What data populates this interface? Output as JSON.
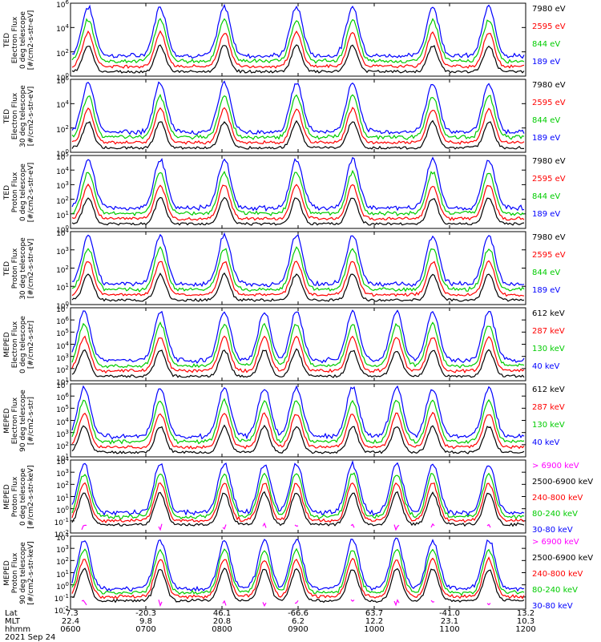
{
  "chart_data": {
    "type": "line",
    "date": "2021 Sep 24",
    "x_row_labels": [
      "Lat",
      "MLT",
      "hhmm"
    ],
    "x_ticks": [
      {
        "lat": "-7.3",
        "mlt": "22.4",
        "hhmm": "0600"
      },
      {
        "lat": "-20.3",
        "mlt": "9.8",
        "hhmm": "0700"
      },
      {
        "lat": "46.1",
        "mlt": "20.8",
        "hhmm": "0800"
      },
      {
        "lat": "-66.6",
        "mlt": "6.2",
        "hhmm": "0900"
      },
      {
        "lat": "63.7",
        "mlt": "12.2",
        "hhmm": "1000"
      },
      {
        "lat": "-41.0",
        "mlt": "23.1",
        "hhmm": "1100"
      },
      {
        "lat": "13.2",
        "mlt": "10.3",
        "hhmm": "1200"
      }
    ],
    "panels": [
      {
        "ylabel": [
          "TED",
          "Electron Flux",
          "0 deg telescope",
          "[#/cm2-s-str-eV]"
        ],
        "yticks": [
          "10^6",
          "10^4",
          "10^2",
          "10^0"
        ],
        "ylog_range": [
          0,
          6
        ],
        "series": [
          {
            "name": "7980 eV",
            "color": "#000000"
          },
          {
            "name": "2595 eV",
            "color": "#ff0000"
          },
          {
            "name": "844 eV",
            "color": "#00cc00"
          },
          {
            "name": "189 eV",
            "color": "#0000ff"
          }
        ]
      },
      {
        "ylabel": [
          "TED",
          "Electron Flux",
          "30 deg telescope",
          "[#/cm2-s-str-eV]"
        ],
        "yticks": [
          "10^6",
          "10^4",
          "10^2",
          "10^0"
        ],
        "ylog_range": [
          0,
          6
        ],
        "series": [
          {
            "name": "7980 eV",
            "color": "#000000"
          },
          {
            "name": "2595 eV",
            "color": "#ff0000"
          },
          {
            "name": "844 eV",
            "color": "#00cc00"
          },
          {
            "name": "189 eV",
            "color": "#0000ff"
          }
        ]
      },
      {
        "ylabel": [
          "TED",
          "Proton Flux",
          "0 deg telescope",
          "[#/cm2-s-str-eV]"
        ],
        "yticks": [
          "10^5",
          "10^4",
          "10^3",
          "10^2",
          "10^1",
          "10^0"
        ],
        "ylog_range": [
          0,
          5
        ],
        "series": [
          {
            "name": "7980 eV",
            "color": "#000000"
          },
          {
            "name": "2595 eV",
            "color": "#ff0000"
          },
          {
            "name": "844 eV",
            "color": "#00cc00"
          },
          {
            "name": "189 eV",
            "color": "#0000ff"
          }
        ]
      },
      {
        "ylabel": [
          "TED",
          "Proton Flux",
          "30 deg telescope",
          "[#/cm2-s-str-eV]"
        ],
        "yticks": [
          "10^4",
          "10^3",
          "10^2",
          "10^1",
          "10^0"
        ],
        "ylog_range": [
          0,
          4
        ],
        "series": [
          {
            "name": "7980 eV",
            "color": "#000000"
          },
          {
            "name": "2595 eV",
            "color": "#ff0000"
          },
          {
            "name": "844 eV",
            "color": "#00cc00"
          },
          {
            "name": "189 eV",
            "color": "#0000ff"
          }
        ]
      },
      {
        "ylabel": [
          "MEPED",
          "Electron Flux",
          "0 deg telescope",
          "[#/cm2-s-str]"
        ],
        "yticks": [
          "10^7",
          "10^6",
          "10^5",
          "10^4",
          "10^3",
          "10^2",
          "10^1"
        ],
        "ylog_range": [
          1,
          7
        ],
        "series": [
          {
            "name": "612 keV",
            "color": "#000000"
          },
          {
            "name": "287 keV",
            "color": "#ff0000"
          },
          {
            "name": "130 keV",
            "color": "#00cc00"
          },
          {
            "name": "40 keV",
            "color": "#0000ff"
          }
        ]
      },
      {
        "ylabel": [
          "MEPED",
          "Electron Flux",
          "90 deg telescope",
          "[#/cm2-s-str]"
        ],
        "yticks": [
          "10^7",
          "10^6",
          "10^5",
          "10^4",
          "10^3",
          "10^2",
          "10^1"
        ],
        "ylog_range": [
          1,
          7
        ],
        "series": [
          {
            "name": "612 keV",
            "color": "#000000"
          },
          {
            "name": "287 keV",
            "color": "#ff0000"
          },
          {
            "name": "130 keV",
            "color": "#00cc00"
          },
          {
            "name": "40 keV",
            "color": "#0000ff"
          }
        ]
      },
      {
        "ylabel": [
          "MEPED",
          "Proton Flux",
          "0 deg telescope",
          "[#/cm2-s-str-keV]"
        ],
        "yticks": [
          "10^4",
          "10^3",
          "10^2",
          "10^1",
          "10^0",
          "10^-1",
          "10^-2"
        ],
        "ylog_range": [
          -2,
          4
        ],
        "series": [
          {
            "name": "> 6900 keV",
            "color": "#ff00ff"
          },
          {
            "name": "2500-6900 keV",
            "color": "#000000"
          },
          {
            "name": "240-800 keV",
            "color": "#ff0000"
          },
          {
            "name": "80-240 keV",
            "color": "#00cc00"
          },
          {
            "name": "30-80 keV",
            "color": "#0000ff"
          }
        ]
      },
      {
        "ylabel": [
          "MEPED",
          "Proton Flux",
          "90 deg telescope",
          "[#/cm2-s-str-keV]"
        ],
        "yticks": [
          "10^4",
          "10^3",
          "10^2",
          "10^1",
          "10^0",
          "10^-1",
          "10^-2"
        ],
        "ylog_range": [
          -2,
          4
        ],
        "series": [
          {
            "name": "> 6900 keV",
            "color": "#ff00ff"
          },
          {
            "name": "2500-6900 keV",
            "color": "#000000"
          },
          {
            "name": "240-800 keV",
            "color": "#ff0000"
          },
          {
            "name": "80-240 keV",
            "color": "#00cc00"
          },
          {
            "name": "30-80 keV",
            "color": "#0000ff"
          }
        ]
      }
    ]
  }
}
